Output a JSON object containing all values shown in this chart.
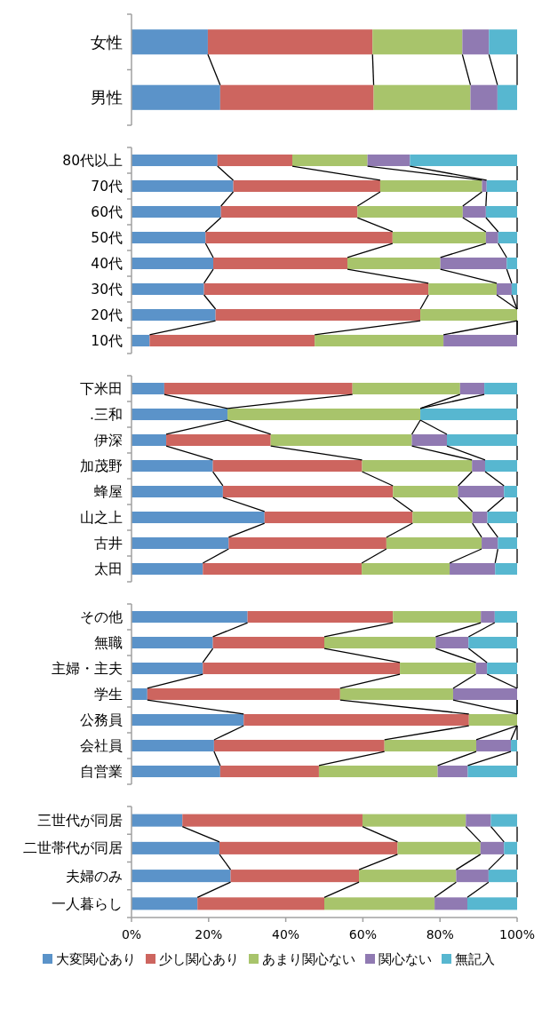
{
  "chart_data": [
    {
      "type": "bar",
      "orientation": "horizontal",
      "stacked": true,
      "categories": [
        "女性",
        "男性"
      ],
      "xlim": [
        0,
        100
      ],
      "tick_labels": "y",
      "legend": false,
      "series": [
        {
          "color": "#5b93c9",
          "values": [
            19.8,
            23.0
          ]
        },
        {
          "color": "#cd655f",
          "values": [
            42.7,
            39.8
          ]
        },
        {
          "color": "#a8c46b",
          "values": [
            23.3,
            25.1
          ]
        },
        {
          "color": "#907ab2",
          "values": [
            6.9,
            7.0
          ]
        },
        {
          "color": "#57b7d0",
          "values": [
            7.3,
            5.1
          ]
        }
      ]
    },
    {
      "type": "bar",
      "orientation": "horizontal",
      "stacked": true,
      "categories": [
        "80代以上",
        "70代",
        "60代",
        "50代",
        "40代",
        "30代",
        "20代",
        "10代"
      ],
      "xlim": [
        0,
        100
      ],
      "tick_labels": "y",
      "legend": false,
      "series": [
        {
          "color": "#5b93c9",
          "values": [
            22.3,
            26.4,
            23.2,
            19.2,
            21.2,
            18.8,
            21.8,
            4.7
          ]
        },
        {
          "color": "#cd655f",
          "values": [
            19.4,
            38.1,
            35.4,
            48.5,
            34.8,
            58.2,
            53.1,
            42.8
          ]
        },
        {
          "color": "#a8c46b",
          "values": [
            19.5,
            26.4,
            27.3,
            24.2,
            24.1,
            17.7,
            25.1,
            33.4
          ]
        },
        {
          "color": "#907ab2",
          "values": [
            11.0,
            1.2,
            6.0,
            3.2,
            17.2,
            3.9,
            0,
            19.1
          ]
        },
        {
          "color": "#57b7d0",
          "values": [
            27.8,
            7.9,
            8.1,
            4.9,
            2.7,
            1.4,
            0,
            0
          ]
        }
      ]
    },
    {
      "type": "bar",
      "orientation": "horizontal",
      "stacked": true,
      "categories": [
        "下米田",
        ".三和",
        "伊深",
        "加茂野",
        "蜂屋",
        "山之上",
        "古井",
        "太田"
      ],
      "xlim": [
        0,
        100
      ],
      "tick_labels": "y",
      "legend": false,
      "series": [
        {
          "color": "#5b93c9",
          "values": [
            8.5,
            24.9,
            9.0,
            21.1,
            23.7,
            34.5,
            25.2,
            18.5
          ]
        },
        {
          "color": "#cd655f",
          "values": [
            48.8,
            0,
            27.1,
            38.7,
            44.1,
            38.4,
            40.9,
            41.2
          ]
        },
        {
          "color": "#a8c46b",
          "values": [
            27.9,
            50.0,
            36.6,
            28.5,
            16.9,
            15.5,
            24.7,
            22.8
          ]
        },
        {
          "color": "#907ab2",
          "values": [
            6.3,
            0,
            9.1,
            3.4,
            11.9,
            3.9,
            4.2,
            11.8
          ]
        },
        {
          "color": "#57b7d0",
          "values": [
            8.5,
            25.1,
            18.2,
            8.3,
            3.4,
            7.7,
            5.0,
            5.7
          ]
        }
      ]
    },
    {
      "type": "bar",
      "orientation": "horizontal",
      "stacked": true,
      "categories": [
        "その他",
        "無職",
        "主婦・主夫",
        "学生",
        "公務員",
        "会社員",
        "自営業"
      ],
      "xlim": [
        0,
        100
      ],
      "tick_labels": "y",
      "legend": false,
      "series": [
        {
          "color": "#5b93c9",
          "values": [
            30.1,
            21.1,
            18.5,
            4.1,
            29.1,
            21.4,
            23.0
          ]
        },
        {
          "color": "#cd655f",
          "values": [
            37.7,
            28.9,
            51.1,
            50.0,
            58.4,
            44.2,
            25.6
          ]
        },
        {
          "color": "#a8c46b",
          "values": [
            22.8,
            28.9,
            19.7,
            29.3,
            12.5,
            23.8,
            30.8
          ]
        },
        {
          "color": "#907ab2",
          "values": [
            3.6,
            8.5,
            2.9,
            16.6,
            0,
            9.0,
            7.8
          ]
        },
        {
          "color": "#57b7d0",
          "values": [
            5.8,
            12.6,
            7.8,
            0,
            0,
            1.6,
            12.8
          ]
        }
      ]
    },
    {
      "type": "bar",
      "orientation": "horizontal",
      "stacked": true,
      "categories": [
        "三世代が同居",
        "二世帯代が同居",
        "夫婦のみ",
        "一人暮らし"
      ],
      "xlim": [
        0,
        100
      ],
      "xticks": [
        {
          "value": 0,
          "label": "0%"
        },
        {
          "value": 20,
          "label": "20%"
        },
        {
          "value": 40,
          "label": "40%"
        },
        {
          "value": 60,
          "label": "60%"
        },
        {
          "value": 80,
          "label": "80%"
        },
        {
          "value": 100,
          "label": "100%"
        }
      ],
      "legend": "bottom",
      "series": [
        {
          "name": "大変関心あり",
          "color": "#5b93c9",
          "values": [
            13.2,
            22.8,
            25.7,
            17.1
          ]
        },
        {
          "name": "少し関心あり",
          "color": "#cd655f",
          "values": [
            46.7,
            46.2,
            33.3,
            32.9
          ]
        },
        {
          "name": "あまり関心ない",
          "color": "#a8c46b",
          "values": [
            26.8,
            21.5,
            25.2,
            28.6
          ]
        },
        {
          "name": "関心ない",
          "color": "#907ab2",
          "values": [
            6.5,
            6.1,
            8.4,
            8.5
          ]
        },
        {
          "name": "無記入",
          "color": "#57b7d0",
          "values": [
            6.8,
            3.4,
            7.4,
            12.9
          ]
        }
      ]
    }
  ]
}
